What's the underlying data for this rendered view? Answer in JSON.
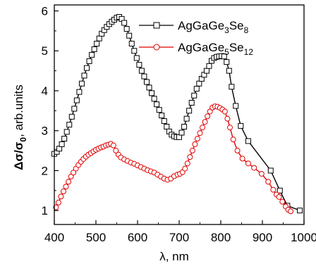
{
  "chart_data": {
    "type": "line",
    "xlabel": "λ, nm",
    "ylabel": {
      "main": "Δσ/σ",
      "sub": "0",
      "rest": ", arb.units"
    },
    "xlim": [
      400,
      1000
    ],
    "ylim": [
      0.65,
      6.15
    ],
    "x_ticks": [
      400,
      500,
      600,
      700,
      800,
      900,
      1000
    ],
    "y_ticks": [
      1,
      2,
      3,
      4,
      5,
      6
    ],
    "grid": false,
    "legend_position": "top-right",
    "series": [
      {
        "name": "AgGaGe3Se8",
        "legend": {
          "p1": "AgGaGe",
          "s1": "3",
          "p2": "Se",
          "s2": "8"
        },
        "color": "#000000",
        "marker": "square",
        "points": [
          [
            400,
            2.42
          ],
          [
            406,
            2.47
          ],
          [
            412,
            2.55
          ],
          [
            418,
            2.66
          ],
          [
            424,
            2.8
          ],
          [
            430,
            2.97
          ],
          [
            436,
            3.15
          ],
          [
            442,
            3.35
          ],
          [
            448,
            3.55
          ],
          [
            454,
            3.76
          ],
          [
            460,
            3.97
          ],
          [
            466,
            4.18
          ],
          [
            472,
            4.38
          ],
          [
            478,
            4.57
          ],
          [
            484,
            4.74
          ],
          [
            490,
            4.9
          ],
          [
            496,
            5.04
          ],
          [
            502,
            5.18
          ],
          [
            508,
            5.31
          ],
          [
            514,
            5.43
          ],
          [
            520,
            5.52
          ],
          [
            526,
            5.6
          ],
          [
            532,
            5.67
          ],
          [
            538,
            5.73
          ],
          [
            544,
            5.78
          ],
          [
            550,
            5.83
          ],
          [
            556,
            5.85
          ],
          [
            562,
            5.8
          ],
          [
            568,
            5.7
          ],
          [
            574,
            5.55
          ],
          [
            580,
            5.38
          ],
          [
            586,
            5.18
          ],
          [
            592,
            5.0
          ],
          [
            598,
            4.82
          ],
          [
            604,
            4.65
          ],
          [
            610,
            4.5
          ],
          [
            616,
            4.36
          ],
          [
            622,
            4.22
          ],
          [
            628,
            4.08
          ],
          [
            634,
            3.94
          ],
          [
            640,
            3.8
          ],
          [
            646,
            3.66
          ],
          [
            652,
            3.52
          ],
          [
            658,
            3.38
          ],
          [
            664,
            3.24
          ],
          [
            670,
            3.1
          ],
          [
            676,
            2.98
          ],
          [
            682,
            2.9
          ],
          [
            688,
            2.86
          ],
          [
            694,
            2.84
          ],
          [
            700,
            2.84
          ],
          [
            706,
            2.95
          ],
          [
            712,
            3.1
          ],
          [
            718,
            3.3
          ],
          [
            724,
            3.5
          ],
          [
            730,
            3.7
          ],
          [
            736,
            3.88
          ],
          [
            742,
            4.05
          ],
          [
            748,
            4.18
          ],
          [
            754,
            4.3
          ],
          [
            760,
            4.4
          ],
          [
            766,
            4.5
          ],
          [
            772,
            4.62
          ],
          [
            778,
            4.75
          ],
          [
            784,
            4.82
          ],
          [
            790,
            4.85
          ],
          [
            796,
            4.86
          ],
          [
            802,
            4.87
          ],
          [
            808,
            4.86
          ],
          [
            814,
            4.72
          ],
          [
            820,
            4.5
          ],
          [
            826,
            4.1
          ],
          [
            836,
            3.62
          ],
          [
            848,
            3.12
          ],
          [
            866,
            2.74
          ],
          [
            920,
            2.0
          ],
          [
            942,
            1.5
          ],
          [
            960,
            1.12
          ],
          [
            990,
            1.0
          ]
        ]
      },
      {
        "name": "AgGaGe5Se12",
        "legend": {
          "p1": "AgGaGe",
          "s1": "5",
          "p2": "Se",
          "s2": "12"
        },
        "color": "#e00000",
        "marker": "circle",
        "points": [
          [
            404,
            1.08
          ],
          [
            410,
            1.2
          ],
          [
            416,
            1.35
          ],
          [
            422,
            1.48
          ],
          [
            428,
            1.6
          ],
          [
            434,
            1.72
          ],
          [
            440,
            1.85
          ],
          [
            446,
            1.95
          ],
          [
            452,
            2.05
          ],
          [
            458,
            2.14
          ],
          [
            464,
            2.22
          ],
          [
            470,
            2.29
          ],
          [
            476,
            2.35
          ],
          [
            482,
            2.4
          ],
          [
            488,
            2.44
          ],
          [
            494,
            2.48
          ],
          [
            500,
            2.52
          ],
          [
            506,
            2.55
          ],
          [
            512,
            2.58
          ],
          [
            518,
            2.6
          ],
          [
            524,
            2.63
          ],
          [
            530,
            2.65
          ],
          [
            536,
            2.67
          ],
          [
            542,
            2.63
          ],
          [
            548,
            2.5
          ],
          [
            554,
            2.4
          ],
          [
            560,
            2.33
          ],
          [
            568,
            2.28
          ],
          [
            576,
            2.24
          ],
          [
            584,
            2.2
          ],
          [
            592,
            2.17
          ],
          [
            600,
            2.13
          ],
          [
            608,
            2.09
          ],
          [
            616,
            2.05
          ],
          [
            624,
            2.01
          ],
          [
            632,
            1.98
          ],
          [
            640,
            1.95
          ],
          [
            648,
            1.9
          ],
          [
            656,
            1.85
          ],
          [
            664,
            1.8
          ],
          [
            672,
            1.77
          ],
          [
            680,
            1.8
          ],
          [
            688,
            1.86
          ],
          [
            696,
            1.9
          ],
          [
            702,
            1.92
          ],
          [
            708,
            1.96
          ],
          [
            714,
            2.05
          ],
          [
            720,
            2.18
          ],
          [
            726,
            2.34
          ],
          [
            732,
            2.5
          ],
          [
            738,
            2.66
          ],
          [
            744,
            2.8
          ],
          [
            750,
            2.94
          ],
          [
            756,
            3.08
          ],
          [
            762,
            3.22
          ],
          [
            768,
            3.36
          ],
          [
            774,
            3.48
          ],
          [
            780,
            3.58
          ],
          [
            786,
            3.61
          ],
          [
            792,
            3.6
          ],
          [
            798,
            3.57
          ],
          [
            804,
            3.53
          ],
          [
            810,
            3.48
          ],
          [
            816,
            3.3
          ],
          [
            822,
            3.08
          ],
          [
            830,
            2.78
          ],
          [
            840,
            2.5
          ],
          [
            852,
            2.3
          ],
          [
            866,
            2.18
          ],
          [
            880,
            2.07
          ],
          [
            898,
            1.92
          ],
          [
            914,
            1.72
          ],
          [
            926,
            1.52
          ],
          [
            934,
            1.4
          ],
          [
            940,
            1.34
          ],
          [
            948,
            1.22
          ],
          [
            956,
            1.1
          ],
          [
            962,
            1.02
          ],
          [
            968,
            0.98
          ]
        ]
      }
    ]
  }
}
